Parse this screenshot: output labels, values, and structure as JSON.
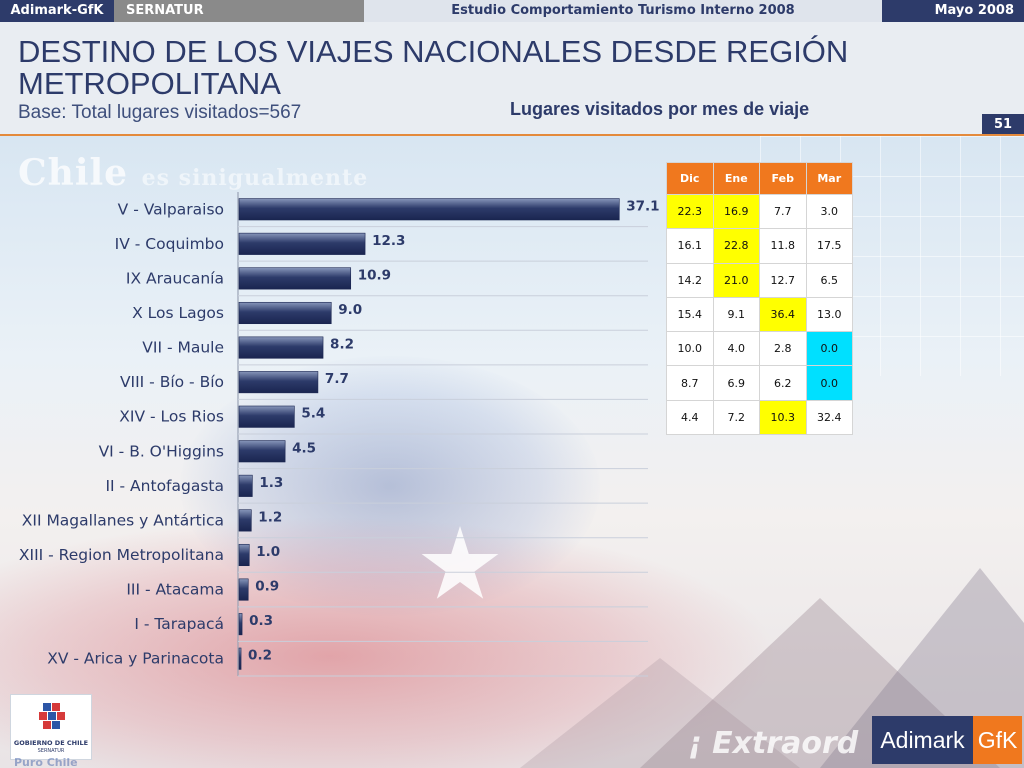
{
  "topbar": {
    "brand": "Adimark-GfK",
    "client": "SERNATUR",
    "study": "Estudio Comportamiento Turismo Interno 2008",
    "date": "Mayo 2008"
  },
  "header": {
    "title": "DESTINO DE LOS VIAJES NACIONALES DESDE REGIÓN METROPOLITANA",
    "subtitle": "Base: Total lugares visitados=567",
    "chart_title": "Lugares visitados por mes de viaje",
    "page_number": "51"
  },
  "background": {
    "slogan_main": "Chile",
    "slogan_rest": "es sinigualmente",
    "slogan_bottom": "¡ Extraord"
  },
  "colors": {
    "navy": "#2d3b6a",
    "orange": "#f0781e",
    "highlight_yellow": "#ffff00",
    "highlight_cyan": "#00e0ff"
  },
  "chart_data": {
    "type": "bar",
    "orientation": "horizontal",
    "categories": [
      "V - Valparaiso",
      "IV - Coquimbo",
      "IX Araucanía",
      "X Los Lagos",
      "VII - Maule",
      "VIII - Bío - Bío",
      "XIV - Los Rios",
      "VI - B. O'Higgins",
      "II - Antofagasta",
      "XII Magallanes y Antártica",
      "XIII - Region Metropolitana",
      "III - Atacama",
      "I - Tarapacá",
      "XV - Arica y Parinacota"
    ],
    "values": [
      37.1,
      12.3,
      10.9,
      9.0,
      8.2,
      7.7,
      5.4,
      4.5,
      1.3,
      1.2,
      1.0,
      0.9,
      0.3,
      0.2
    ],
    "value_labels": [
      "37.1",
      "12.3",
      "10.9",
      "9.0",
      "8.2",
      "7.7",
      "5.4",
      "4.5",
      "1.3",
      "1.2",
      "1.0",
      "0.9",
      "0.3",
      "0.2"
    ],
    "xlim": [
      0,
      40
    ],
    "grid": true,
    "bar_color": "#2d3b6a"
  },
  "month_table": {
    "headers": [
      "Dic",
      "Ene",
      "Feb",
      "Mar"
    ],
    "rows": [
      {
        "cells": [
          "22.3",
          "16.9",
          "7.7",
          "3.0"
        ],
        "highlight": [
          "yellow",
          "yellow",
          "",
          ""
        ]
      },
      {
        "cells": [
          "16.1",
          "22.8",
          "11.8",
          "17.5"
        ],
        "highlight": [
          "",
          "yellow",
          "",
          ""
        ]
      },
      {
        "cells": [
          "14.2",
          "21.0",
          "12.7",
          "6.5"
        ],
        "highlight": [
          "",
          "yellow",
          "",
          ""
        ]
      },
      {
        "cells": [
          "15.4",
          "9.1",
          "36.4",
          "13.0"
        ],
        "highlight": [
          "",
          "",
          "yellow",
          ""
        ]
      },
      {
        "cells": [
          "10.0",
          "4.0",
          "2.8",
          "0.0"
        ],
        "highlight": [
          "",
          "",
          "",
          "cyan"
        ]
      },
      {
        "cells": [
          "8.7",
          "6.9",
          "6.2",
          "0.0"
        ],
        "highlight": [
          "",
          "",
          "",
          "cyan"
        ]
      },
      {
        "cells": [
          "4.4",
          "7.2",
          "10.3",
          "32.4"
        ],
        "highlight": [
          "",
          "",
          "yellow",
          ""
        ]
      }
    ]
  },
  "logos": {
    "gov_text": "GOBIERNO DE CHILE",
    "gov_sub": "SERNATUR",
    "puro": "Puro Chile",
    "adimark": "Adimark",
    "gfk": "GfK"
  }
}
